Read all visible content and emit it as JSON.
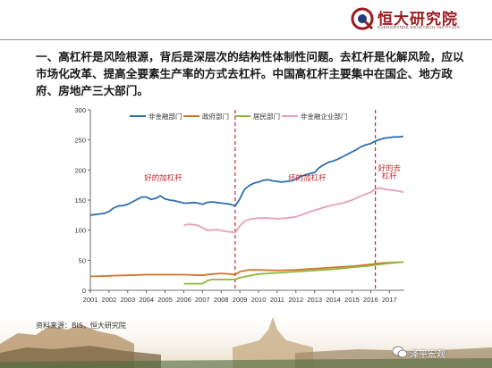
{
  "brand": {
    "name": "恒大研究院",
    "subtitle": "EVERGRANDE RESEARCH INSTITUTE",
    "accent_color": "#9b1b1e",
    "icon": "evergrande-logo-icon"
  },
  "heading": "一、高杠杆是风险根源，背后是深层次的结构性体制性问题。去杠杆是化解风险，应以市场化改革、提高全要素生产率的方式去杠杆。中国高杠杆主要集中在国企、地方政府、房地产三大部门。",
  "source": "资料来源：BIS，恒大研究院",
  "watermark": {
    "text": "泽平宏观",
    "icon": "wechat-icon"
  },
  "chart_data": {
    "type": "line",
    "title": "",
    "xlabel": "",
    "ylabel": "",
    "xlim": [
      2001,
      2017.8
    ],
    "ylim": [
      0,
      300
    ],
    "yticks": [
      0,
      50,
      100,
      150,
      200,
      250,
      300
    ],
    "xticks": [
      "2001",
      "2002",
      "2003",
      "2004",
      "2005",
      "2006",
      "2007",
      "2008",
      "2009",
      "2010",
      "2011",
      "2012",
      "2013",
      "2014",
      "2015",
      "2016",
      "2017"
    ],
    "grid": false,
    "legend_position": "top",
    "dividers": [
      2008.75,
      2016.25
    ],
    "divider_color": "#c0282d",
    "annotations": [
      {
        "text": "好的加杠杆",
        "x": 2004.9,
        "y": 183
      },
      {
        "text": "坏的加杠杆",
        "x": 2012.6,
        "y": 183
      },
      {
        "text": "好的去",
        "x": 2017.0,
        "y": 199
      },
      {
        "text": "杠杆",
        "x": 2017.0,
        "y": 186
      }
    ],
    "annotation_color": "#c0282d",
    "series": [
      {
        "name": "非金融部门",
        "color": "#2f6fb0",
        "x": [
          2001.0,
          2001.25,
          2001.5,
          2001.75,
          2002.0,
          2002.25,
          2002.5,
          2002.75,
          2003.0,
          2003.25,
          2003.5,
          2003.75,
          2004.0,
          2004.25,
          2004.5,
          2004.75,
          2005.0,
          2005.25,
          2005.5,
          2005.75,
          2006.0,
          2006.25,
          2006.5,
          2006.75,
          2007.0,
          2007.25,
          2007.5,
          2007.75,
          2008.0,
          2008.25,
          2008.5,
          2008.75,
          2009.0,
          2009.25,
          2009.5,
          2009.75,
          2010.0,
          2010.25,
          2010.5,
          2010.75,
          2011.0,
          2011.25,
          2011.5,
          2011.75,
          2012.0,
          2012.25,
          2012.5,
          2012.75,
          2013.0,
          2013.25,
          2013.5,
          2013.75,
          2014.0,
          2014.25,
          2014.5,
          2014.75,
          2015.0,
          2015.25,
          2015.5,
          2015.75,
          2016.0,
          2016.25,
          2016.5,
          2016.75,
          2017.0,
          2017.25,
          2017.5,
          2017.75
        ],
        "values": [
          125,
          126,
          127,
          128,
          131,
          137,
          140,
          141,
          143,
          147,
          151,
          155,
          155,
          151,
          153,
          157,
          152,
          150,
          149,
          147,
          145,
          145,
          146,
          145,
          143,
          146,
          147,
          146,
          145,
          144,
          143,
          140,
          152,
          168,
          174,
          178,
          180,
          183,
          184,
          182,
          181,
          180,
          181,
          182,
          185,
          189,
          192,
          194,
          196,
          204,
          209,
          213,
          215,
          218,
          222,
          226,
          230,
          234,
          239,
          242,
          244,
          248,
          251,
          253,
          254,
          255,
          255,
          256
        ]
      },
      {
        "name": "政府部门",
        "color": "#d4742a",
        "x": [
          2001.0,
          2002.0,
          2003.0,
          2004.0,
          2005.0,
          2006.0,
          2007.0,
          2007.5,
          2008.0,
          2008.5,
          2008.75,
          2009.0,
          2009.5,
          2010.0,
          2011.0,
          2012.0,
          2013.0,
          2014.0,
          2015.0,
          2016.0,
          2016.5,
          2017.0,
          2017.75
        ],
        "values": [
          23,
          24,
          25,
          26,
          26,
          26,
          25,
          27,
          28,
          27,
          26,
          31,
          34,
          34,
          33,
          34,
          36,
          38,
          40,
          43,
          45,
          46,
          47
        ]
      },
      {
        "name": "居民部门",
        "color": "#8cb83c",
        "x": [
          2006.0,
          2006.5,
          2007.0,
          2007.25,
          2007.5,
          2008.0,
          2008.5,
          2008.75,
          2009.0,
          2009.5,
          2010.0,
          2011.0,
          2012.0,
          2013.0,
          2014.0,
          2015.0,
          2016.0,
          2016.5,
          2017.0,
          2017.75
        ],
        "values": [
          11,
          11,
          11,
          16,
          18,
          18,
          18,
          18,
          21,
          24,
          27,
          29,
          31,
          33,
          35,
          38,
          41,
          43,
          45,
          47
        ]
      },
      {
        "name": "非金融企业部门",
        "color": "#e8a0b4",
        "x": [
          2006.0,
          2006.25,
          2006.5,
          2006.75,
          2007.0,
          2007.25,
          2007.5,
          2007.75,
          2008.0,
          2008.25,
          2008.5,
          2008.75,
          2009.0,
          2009.25,
          2009.5,
          2009.75,
          2010.0,
          2010.5,
          2011.0,
          2011.5,
          2012.0,
          2012.5,
          2013.0,
          2013.5,
          2014.0,
          2014.5,
          2015.0,
          2015.5,
          2016.0,
          2016.25,
          2016.5,
          2016.75,
          2017.0,
          2017.25,
          2017.5,
          2017.75
        ],
        "values": [
          108,
          110,
          109,
          108,
          104,
          100,
          100,
          101,
          99,
          98,
          97,
          96,
          107,
          115,
          118,
          119,
          120,
          120,
          119,
          120,
          122,
          128,
          133,
          138,
          142,
          145,
          150,
          157,
          163,
          168,
          170,
          168,
          167,
          166,
          165,
          163
        ]
      }
    ]
  }
}
